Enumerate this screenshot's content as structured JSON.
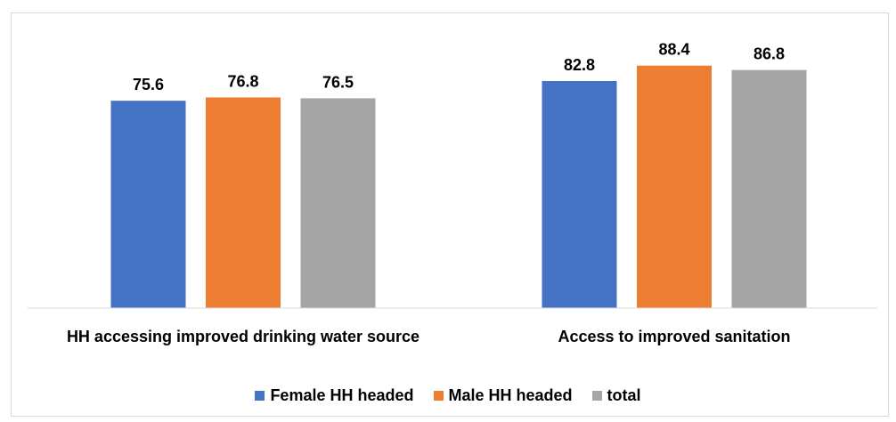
{
  "chart_data": {
    "type": "bar",
    "categories": [
      "HH accessing improved drinking water source",
      "Access to improved sanitation"
    ],
    "series": [
      {
        "name": "Female HH headed",
        "color": "#4472c4",
        "values": [
          75.6,
          82.8
        ]
      },
      {
        "name": "Male HH headed",
        "color": "#ed7d31",
        "values": [
          76.8,
          88.4
        ]
      },
      {
        "name": "total",
        "color": "#a5a5a5",
        "values": [
          76.5,
          86.8
        ]
      }
    ],
    "ylim": [
      0,
      100
    ],
    "legend": "bottom"
  }
}
